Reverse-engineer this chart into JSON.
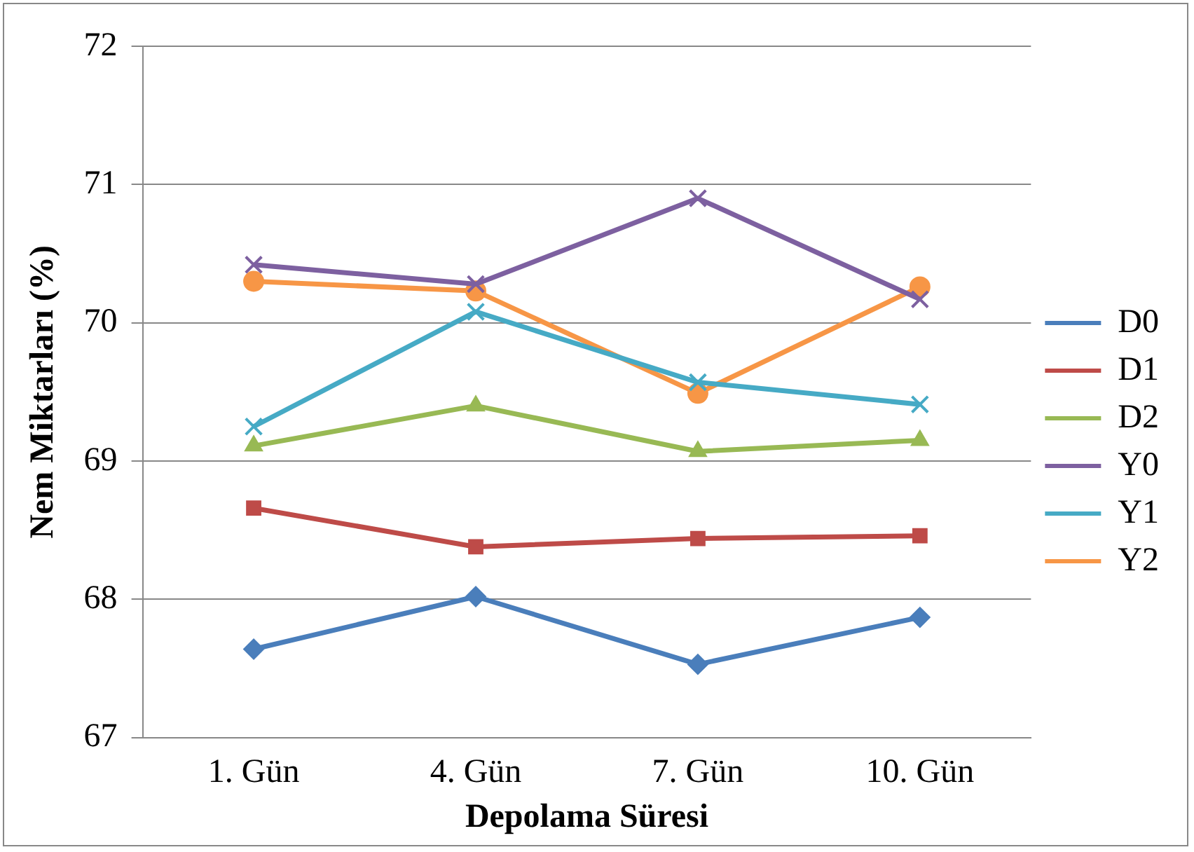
{
  "chart_data": {
    "type": "line",
    "xlabel": "Depolama Süresi",
    "ylabel": "Nem Miktarları (%)",
    "categories": [
      "1. Gün",
      "4. Gün",
      "7. Gün",
      "10. Gün"
    ],
    "series": [
      {
        "name": "D0",
        "color": "#4a7ebb",
        "marker": "diamond",
        "values": [
          67.64,
          68.02,
          67.53,
          67.87
        ]
      },
      {
        "name": "D1",
        "color": "#be4b48",
        "marker": "square",
        "values": [
          68.66,
          68.38,
          68.44,
          68.46
        ]
      },
      {
        "name": "D2",
        "color": "#98b954",
        "marker": "triangle",
        "values": [
          69.11,
          69.4,
          69.07,
          69.15
        ]
      },
      {
        "name": "Y0",
        "color": "#7d60a0",
        "marker": "cross",
        "values": [
          70.42,
          70.28,
          70.9,
          70.17
        ]
      },
      {
        "name": "Y1",
        "color": "#46aac5",
        "marker": "cross",
        "values": [
          69.25,
          70.08,
          69.57,
          69.41
        ]
      },
      {
        "name": "Y2",
        "color": "#f79646",
        "marker": "circle",
        "values": [
          70.3,
          70.23,
          69.49,
          70.26
        ]
      }
    ],
    "ylim": [
      67,
      72
    ],
    "yticks": [
      67,
      68,
      69,
      70,
      71,
      72
    ],
    "grid": "y",
    "legend": "right",
    "line_style": "solid"
  }
}
